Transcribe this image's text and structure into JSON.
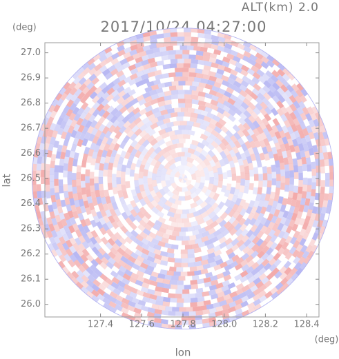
{
  "chart_data": {
    "type": "radar-field",
    "altitude_label": "ALT(km) 2.0",
    "title": "2017/10/24 04:27:00",
    "y_unit": "(deg)",
    "x_unit": "(deg)",
    "xlabel": "lon",
    "ylabel": "lat",
    "center": [
      127.8,
      26.5
    ],
    "radius": 0.66,
    "xlim": [
      127.13,
      128.46
    ],
    "ylim": [
      25.95,
      27.04
    ],
    "xticks": [
      127.4,
      127.6,
      127.8,
      {
        "value": 128,
        "label": "128.0"
      },
      128.2,
      128.4
    ],
    "yticks": [
      {
        "value": 26,
        "label": "26.0"
      },
      26.1,
      26.2,
      26.3,
      26.4,
      26.5,
      26.6,
      26.7,
      26.8,
      26.9,
      {
        "value": 27,
        "label": "27.0"
      }
    ],
    "colors": [
      "#f2a6a6",
      "#ffffff",
      "#b4b4f2"
    ]
  }
}
